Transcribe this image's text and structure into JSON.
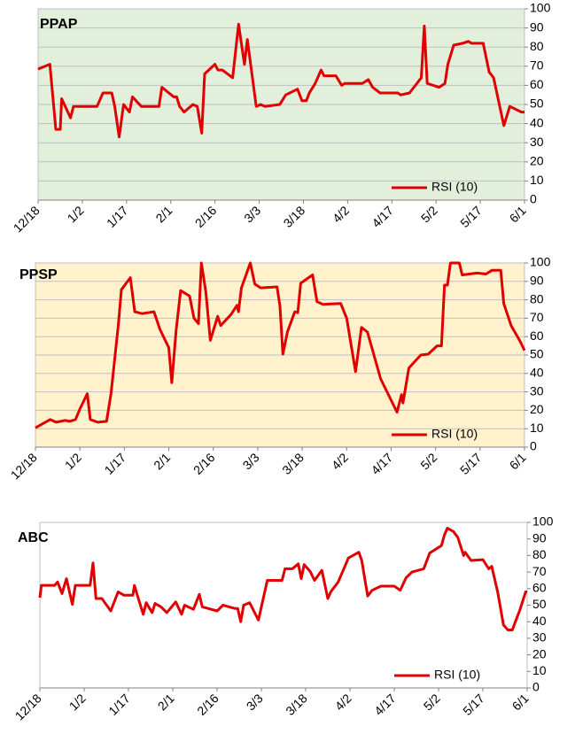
{
  "chart_data": [
    {
      "type": "line",
      "title": "PPAP",
      "background": "#e2efda",
      "grid": true,
      "legend": "lower right",
      "xlim": [
        0,
        165
      ],
      "ylim": [
        0,
        100
      ],
      "xticks": [
        {
          "value": 0,
          "label": "12/18"
        },
        {
          "value": 15,
          "label": "1/2"
        },
        {
          "value": 30,
          "label": "1/17"
        },
        {
          "value": 45,
          "label": "2/1"
        },
        {
          "value": 60,
          "label": "2/16"
        },
        {
          "value": 75,
          "label": "3/3"
        },
        {
          "value": 90,
          "label": "3/18"
        },
        {
          "value": 105,
          "label": "4/2"
        },
        {
          "value": 120,
          "label": "4/17"
        },
        {
          "value": 135,
          "label": "5/2"
        },
        {
          "value": 150,
          "label": "5/17"
        },
        {
          "value": 165,
          "label": "6/1"
        }
      ],
      "yticks": [
        0,
        10,
        20,
        30,
        40,
        50,
        60,
        70,
        80,
        90,
        100
      ],
      "x": [
        0,
        4,
        6,
        7.5,
        8,
        11,
        12,
        20,
        22,
        25,
        26,
        27.5,
        29,
        31,
        32,
        35,
        41,
        42,
        46,
        47,
        48,
        49.5,
        52.5,
        54,
        55.5,
        56.5,
        60,
        61,
        62.5,
        66,
        68,
        70,
        71,
        74,
        75.5,
        77,
        82,
        84,
        88,
        89.5,
        91,
        92,
        94,
        96,
        97,
        101,
        103,
        104,
        110,
        112,
        113.5,
        116,
        122,
        123,
        126,
        130,
        131,
        132,
        136,
        138,
        139,
        141,
        144,
        146,
        147,
        151,
        153,
        154.5,
        158,
        160,
        164,
        165
      ],
      "series": [
        {
          "name": "RSI (10)",
          "color": "#e00000",
          "values": [
            68.5,
            71,
            37,
            37,
            53,
            43,
            49,
            49,
            56,
            56,
            49,
            33,
            50,
            46,
            54,
            49,
            49,
            59,
            54,
            54,
            49,
            46,
            50,
            49,
            35,
            66,
            71,
            68,
            68,
            64,
            92,
            71,
            84,
            49,
            50,
            49,
            50,
            55,
            58,
            52,
            52,
            56,
            61,
            68,
            65,
            65,
            60,
            61,
            61,
            63,
            59,
            56,
            56,
            55,
            56,
            64,
            91,
            61,
            59,
            61,
            71,
            81,
            82,
            83,
            82,
            82,
            67,
            64,
            39,
            49,
            46,
            46
          ]
        }
      ]
    },
    {
      "type": "line",
      "title": "PPSP",
      "background": "#fff2cc",
      "grid": true,
      "legend": "lower right",
      "xlim": [
        0,
        165
      ],
      "ylim": [
        0,
        100
      ],
      "xticks": [
        {
          "value": 0,
          "label": "12/18"
        },
        {
          "value": 15,
          "label": "1/2"
        },
        {
          "value": 30,
          "label": "1/17"
        },
        {
          "value": 45,
          "label": "2/1"
        },
        {
          "value": 60,
          "label": "2/16"
        },
        {
          "value": 75,
          "label": "3/3"
        },
        {
          "value": 90,
          "label": "3/18"
        },
        {
          "value": 105,
          "label": "4/2"
        },
        {
          "value": 120,
          "label": "4/17"
        },
        {
          "value": 135,
          "label": "5/2"
        },
        {
          "value": 150,
          "label": "5/17"
        },
        {
          "value": 165,
          "label": "6/1"
        }
      ],
      "yticks": [
        0,
        10,
        20,
        30,
        40,
        50,
        60,
        70,
        80,
        90,
        100
      ],
      "x": [
        0,
        5,
        7,
        10,
        11.5,
        13.5,
        15,
        17.5,
        18.5,
        21,
        24,
        25.5,
        28,
        29,
        32,
        33.5,
        36,
        40,
        42,
        45,
        46,
        47.5,
        49,
        52,
        53.5,
        55,
        56,
        57.5,
        59,
        61.5,
        62.5,
        66,
        68,
        68.5,
        69.5,
        72.5,
        74,
        76,
        81.5,
        82.5,
        83.5,
        85,
        87.5,
        88.5,
        89.5,
        93.5,
        95,
        97,
        103,
        105,
        108,
        110,
        112,
        116.5,
        122,
        123.5,
        124,
        126,
        130,
        132.5,
        135.5,
        137,
        138,
        139,
        140,
        143,
        144,
        149,
        152,
        154,
        157,
        158,
        160.5,
        163.5,
        165
      ],
      "series": [
        {
          "name": "RSI (10)",
          "color": "#e00000",
          "values": [
            10.5,
            15,
            13.5,
            14.5,
            14,
            15,
            20.7,
            29,
            15,
            13.5,
            14,
            29,
            67,
            85.5,
            92,
            73.5,
            72.5,
            73.5,
            64,
            54,
            35,
            64,
            85,
            82,
            70,
            67,
            100,
            84,
            58,
            71,
            66,
            72,
            77,
            73.5,
            86.5,
            100,
            88.5,
            86.5,
            87,
            76.5,
            50.5,
            62.5,
            73.5,
            73,
            89,
            93.5,
            79,
            77.5,
            78,
            70,
            41,
            65,
            62.5,
            37,
            19,
            28.5,
            24,
            43,
            50,
            50.5,
            55,
            55,
            88,
            88,
            100,
            100,
            93.5,
            94.5,
            94,
            96,
            96,
            78,
            66,
            57.5,
            52.5
          ]
        }
      ]
    },
    {
      "type": "line",
      "title": "ABC",
      "background": "#ffffff",
      "grid": false,
      "legend": "lower right",
      "xlim": [
        0,
        165
      ],
      "ylim": [
        0,
        100
      ],
      "xticks": [
        {
          "value": 0,
          "label": "12/18"
        },
        {
          "value": 15,
          "label": "1/2"
        },
        {
          "value": 30,
          "label": "1/17"
        },
        {
          "value": 45,
          "label": "2/1"
        },
        {
          "value": 60,
          "label": "2/16"
        },
        {
          "value": 75,
          "label": "3/3"
        },
        {
          "value": 90,
          "label": "3/18"
        },
        {
          "value": 105,
          "label": "4/2"
        },
        {
          "value": 120,
          "label": "4/17"
        },
        {
          "value": 135,
          "label": "5/2"
        },
        {
          "value": 150,
          "label": "5/17"
        },
        {
          "value": 165,
          "label": "6/1"
        }
      ],
      "yticks": [
        0,
        10,
        20,
        30,
        40,
        50,
        60,
        70,
        80,
        90,
        100
      ],
      "x": [
        0,
        0.5,
        5,
        6,
        7.5,
        9,
        11,
        12,
        17,
        18,
        19,
        21,
        24,
        26.5,
        28.5,
        31.5,
        32,
        33,
        35,
        36,
        38,
        39,
        41,
        43,
        46,
        48,
        49,
        52,
        54,
        55,
        56,
        60,
        62,
        66,
        67,
        68,
        69,
        71,
        74,
        77,
        82,
        83,
        85.5,
        87.5,
        88.5,
        89.5,
        91.5,
        93,
        95.5,
        97.5,
        98.5,
        101,
        104.5,
        108,
        109,
        111,
        112.5,
        115.5,
        120,
        122,
        124,
        126,
        130,
        132,
        136,
        137,
        138,
        140,
        141.5,
        143.5,
        144,
        146,
        150,
        152,
        153,
        155,
        157,
        158.5,
        160,
        161,
        162.5,
        164.5,
        165
      ],
      "series": [
        {
          "name": "RSI (10)",
          "color": "#e00000",
          "values": [
            54.5,
            62,
            62,
            64,
            57,
            66,
            50.5,
            62,
            62,
            75.5,
            54,
            54,
            46.5,
            58,
            56,
            56,
            62,
            56,
            44.5,
            51.5,
            45.5,
            51,
            49,
            45.5,
            52,
            44.5,
            50,
            47.5,
            56.5,
            49,
            48.5,
            46.5,
            50,
            48,
            48,
            40,
            50,
            51.5,
            41,
            65,
            65,
            72,
            72,
            75,
            66,
            74.5,
            70.5,
            65,
            71,
            54,
            58,
            64,
            78.5,
            82,
            77,
            55.5,
            59,
            61.5,
            61.5,
            59,
            66.5,
            70,
            72,
            81.5,
            86,
            92.5,
            96.5,
            94.5,
            91,
            80,
            82,
            77,
            77.5,
            72,
            73.5,
            58,
            38,
            35,
            35,
            40,
            47,
            58,
            58
          ]
        }
      ]
    }
  ]
}
